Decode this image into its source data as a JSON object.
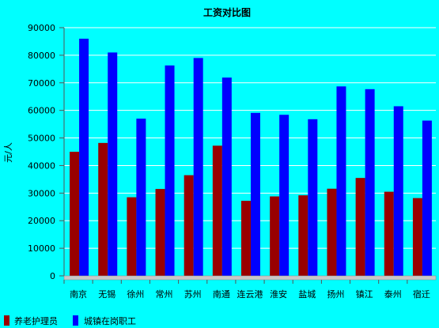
{
  "chart_data": {
    "type": "bar",
    "title": "工资对比图",
    "ylabel": "元/人",
    "xlabel": "",
    "ylim": [
      0,
      90000
    ],
    "yticks": [
      0,
      10000,
      20000,
      30000,
      40000,
      50000,
      60000,
      70000,
      80000,
      90000
    ],
    "grid": true,
    "legend_position": "bottom-left",
    "categories": [
      "南京",
      "无锡",
      "徐州",
      "常州",
      "苏州",
      "南通",
      "连云港",
      "淮安",
      "盐城",
      "扬州",
      "镇江",
      "泰州",
      "宿迁"
    ],
    "series": [
      {
        "name": "养老护理员",
        "color": "#990000",
        "values": [
          45000,
          48200,
          28500,
          31500,
          36500,
          47200,
          27200,
          28800,
          29200,
          31600,
          35500,
          30500,
          28200
        ]
      },
      {
        "name": "城镇在岗职工",
        "color": "#0000ff",
        "values": [
          86000,
          81000,
          57000,
          76300,
          79000,
          71900,
          59100,
          58400,
          56800,
          68700,
          67700,
          61500,
          56300
        ]
      }
    ]
  }
}
